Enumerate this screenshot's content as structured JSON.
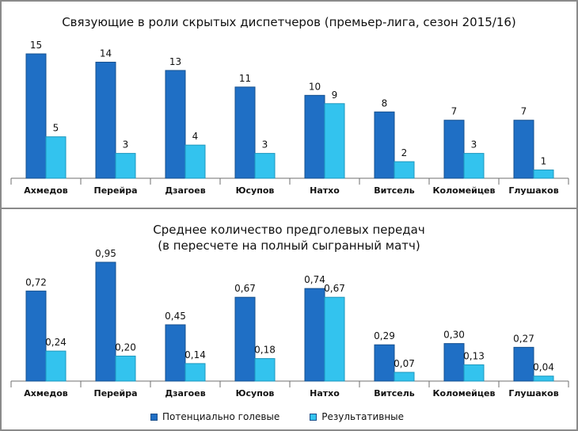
{
  "chart_data": [
    {
      "type": "bar",
      "title": "Связующие в роли скрытых диспетчеров (премьер-лига, сезон 2015/16)",
      "categories": [
        "Ахмедов",
        "Перейра",
        "Дзагоев",
        "Юсупов",
        "Натхо",
        "Витсель",
        "Коломейцев",
        "Глушаков"
      ],
      "series": [
        {
          "name": "Потенциально голевые",
          "values": [
            15,
            14,
            13,
            11,
            10,
            8,
            7,
            7
          ],
          "labels": [
            "15",
            "14",
            "13",
            "11",
            "10",
            "8",
            "7",
            "7"
          ]
        },
        {
          "name": "Результативные",
          "values": [
            5,
            3,
            4,
            3,
            9,
            2,
            3,
            1
          ],
          "labels": [
            "5",
            "3",
            "4",
            "3",
            "9",
            "2",
            "3",
            "1"
          ]
        }
      ],
      "ylim": [
        0,
        15
      ]
    },
    {
      "type": "bar",
      "title": "Среднее количество предголевых передач",
      "subtitle": "(в пересчете на полный сыгранный матч)",
      "categories": [
        "Ахмедов",
        "Перейра",
        "Дзагоев",
        "Юсупов",
        "Натхо",
        "Витсель",
        "Коломейцев",
        "Глушаков"
      ],
      "series": [
        {
          "name": "Потенциально голевые",
          "values": [
            0.72,
            0.95,
            0.45,
            0.67,
            0.74,
            0.29,
            0.3,
            0.27
          ],
          "labels": [
            "0,72",
            "0,95",
            "0,45",
            "0,67",
            "0,74",
            "0,29",
            "0,30",
            "0,27"
          ]
        },
        {
          "name": "Результативные",
          "values": [
            0.24,
            0.2,
            0.14,
            0.18,
            0.67,
            0.07,
            0.13,
            0.04
          ],
          "labels": [
            "0,24",
            "0,20",
            "0,14",
            "0,18",
            "0,67",
            "0,07",
            "0,13",
            "0,04"
          ]
        }
      ],
      "ylim": [
        0,
        0.95
      ]
    }
  ],
  "legend": {
    "items": [
      {
        "label": "Потенциально голевые",
        "color": "#1f6fc5"
      },
      {
        "label": "Результативные",
        "color": "#33c3ee"
      }
    ]
  },
  "colors": {
    "series1": "#1f6fc5",
    "series2": "#33c3ee"
  }
}
